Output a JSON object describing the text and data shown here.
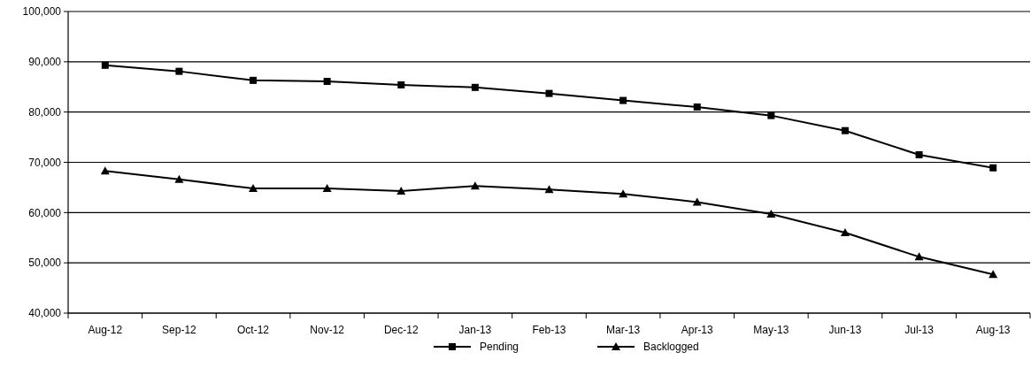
{
  "chart_data": {
    "type": "line",
    "categories": [
      "Aug-12",
      "Sep-12",
      "Oct-12",
      "Nov-12",
      "Dec-12",
      "Jan-13",
      "Feb-13",
      "Mar-13",
      "Apr-13",
      "May-13",
      "Jun-13",
      "Jul-13",
      "Aug-13"
    ],
    "series": [
      {
        "name": "Pending",
        "color": "#000000",
        "marker": "square",
        "values": [
          89300,
          88100,
          86300,
          86100,
          85400,
          84900,
          83700,
          82300,
          81000,
          79300,
          76300,
          71500,
          68900
        ]
      },
      {
        "name": "Backlogged",
        "color": "#000000",
        "marker": "triangle",
        "values": [
          68300,
          66600,
          64800,
          64800,
          64300,
          65300,
          64600,
          63700,
          62100,
          59700,
          56000,
          51200,
          47700
        ]
      }
    ],
    "ylim": [
      40000,
      100000
    ],
    "yticks": [
      {
        "value": 40000,
        "label": "40,000"
      },
      {
        "value": 50000,
        "label": "50,000"
      },
      {
        "value": 60000,
        "label": "60,000"
      },
      {
        "value": 70000,
        "label": "70,000"
      },
      {
        "value": 80000,
        "label": "80,000"
      },
      {
        "value": 90000,
        "label": "90,000"
      },
      {
        "value": 100000,
        "label": "100,000"
      }
    ],
    "grid": "y",
    "legend": "bottom",
    "line_style": "solid"
  }
}
